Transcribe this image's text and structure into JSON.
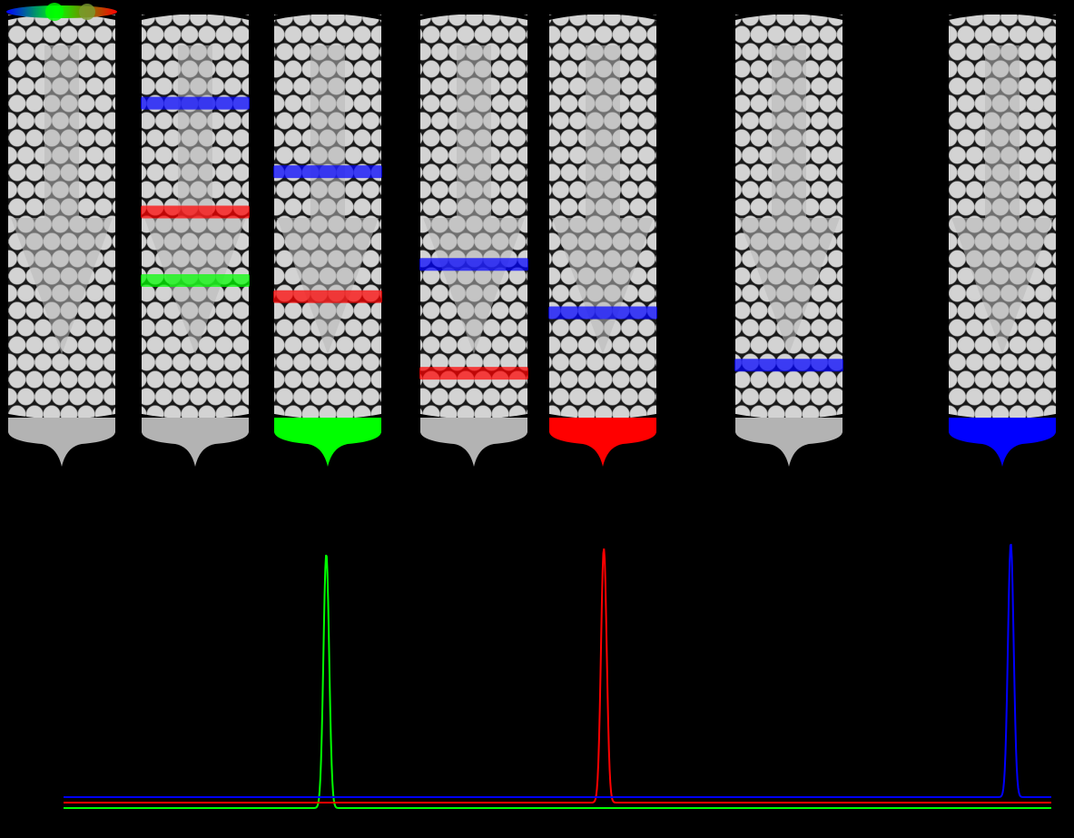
{
  "colors": {
    "background": "#000000",
    "packing_bead": "#d3d3d3",
    "packing_bead_outline": "#9a9a9a",
    "flow_arrow": "#b8b8b8",
    "outlet_idle": "#b3b3b3",
    "green": "#00ff00",
    "red": "#ff0000",
    "blue": "#0000ff"
  },
  "columns": [
    {
      "name": "sample-loaded",
      "bands": [],
      "outlet": "idle",
      "sample_mixture": true
    },
    {
      "name": "separating",
      "bands": [
        {
          "color": "blue",
          "position": 0.22
        },
        {
          "color": "red",
          "position": 0.49
        },
        {
          "color": "green",
          "position": 0.66
        }
      ],
      "outlet": "idle"
    },
    {
      "name": "green-eluting",
      "bands": [
        {
          "color": "blue",
          "position": 0.39
        },
        {
          "color": "red",
          "position": 0.7
        }
      ],
      "outlet": "green"
    },
    {
      "name": "separating-2",
      "bands": [
        {
          "color": "blue",
          "position": 0.62
        },
        {
          "color": "red",
          "position": 0.89
        }
      ],
      "outlet": "idle"
    },
    {
      "name": "red-eluting",
      "bands": [
        {
          "color": "blue",
          "position": 0.74
        }
      ],
      "outlet": "red"
    },
    {
      "name": "blue-near-outlet",
      "bands": [
        {
          "color": "blue",
          "position": 0.87
        }
      ],
      "outlet": "idle"
    },
    {
      "name": "blue-eluting",
      "bands": [],
      "outlet": "blue"
    }
  ],
  "chart_data": {
    "type": "line",
    "series": [
      {
        "color": "green",
        "baseline": 0.0,
        "peak_x": 0.266,
        "peak_height": 1.0
      },
      {
        "color": "red",
        "baseline": 0.02,
        "peak_x": 0.547,
        "peak_height": 1.0
      },
      {
        "color": "blue",
        "baseline": 0.04,
        "peak_x": 0.959,
        "peak_height": 1.0
      }
    ],
    "xlim": [
      0,
      1
    ],
    "grid": false
  }
}
